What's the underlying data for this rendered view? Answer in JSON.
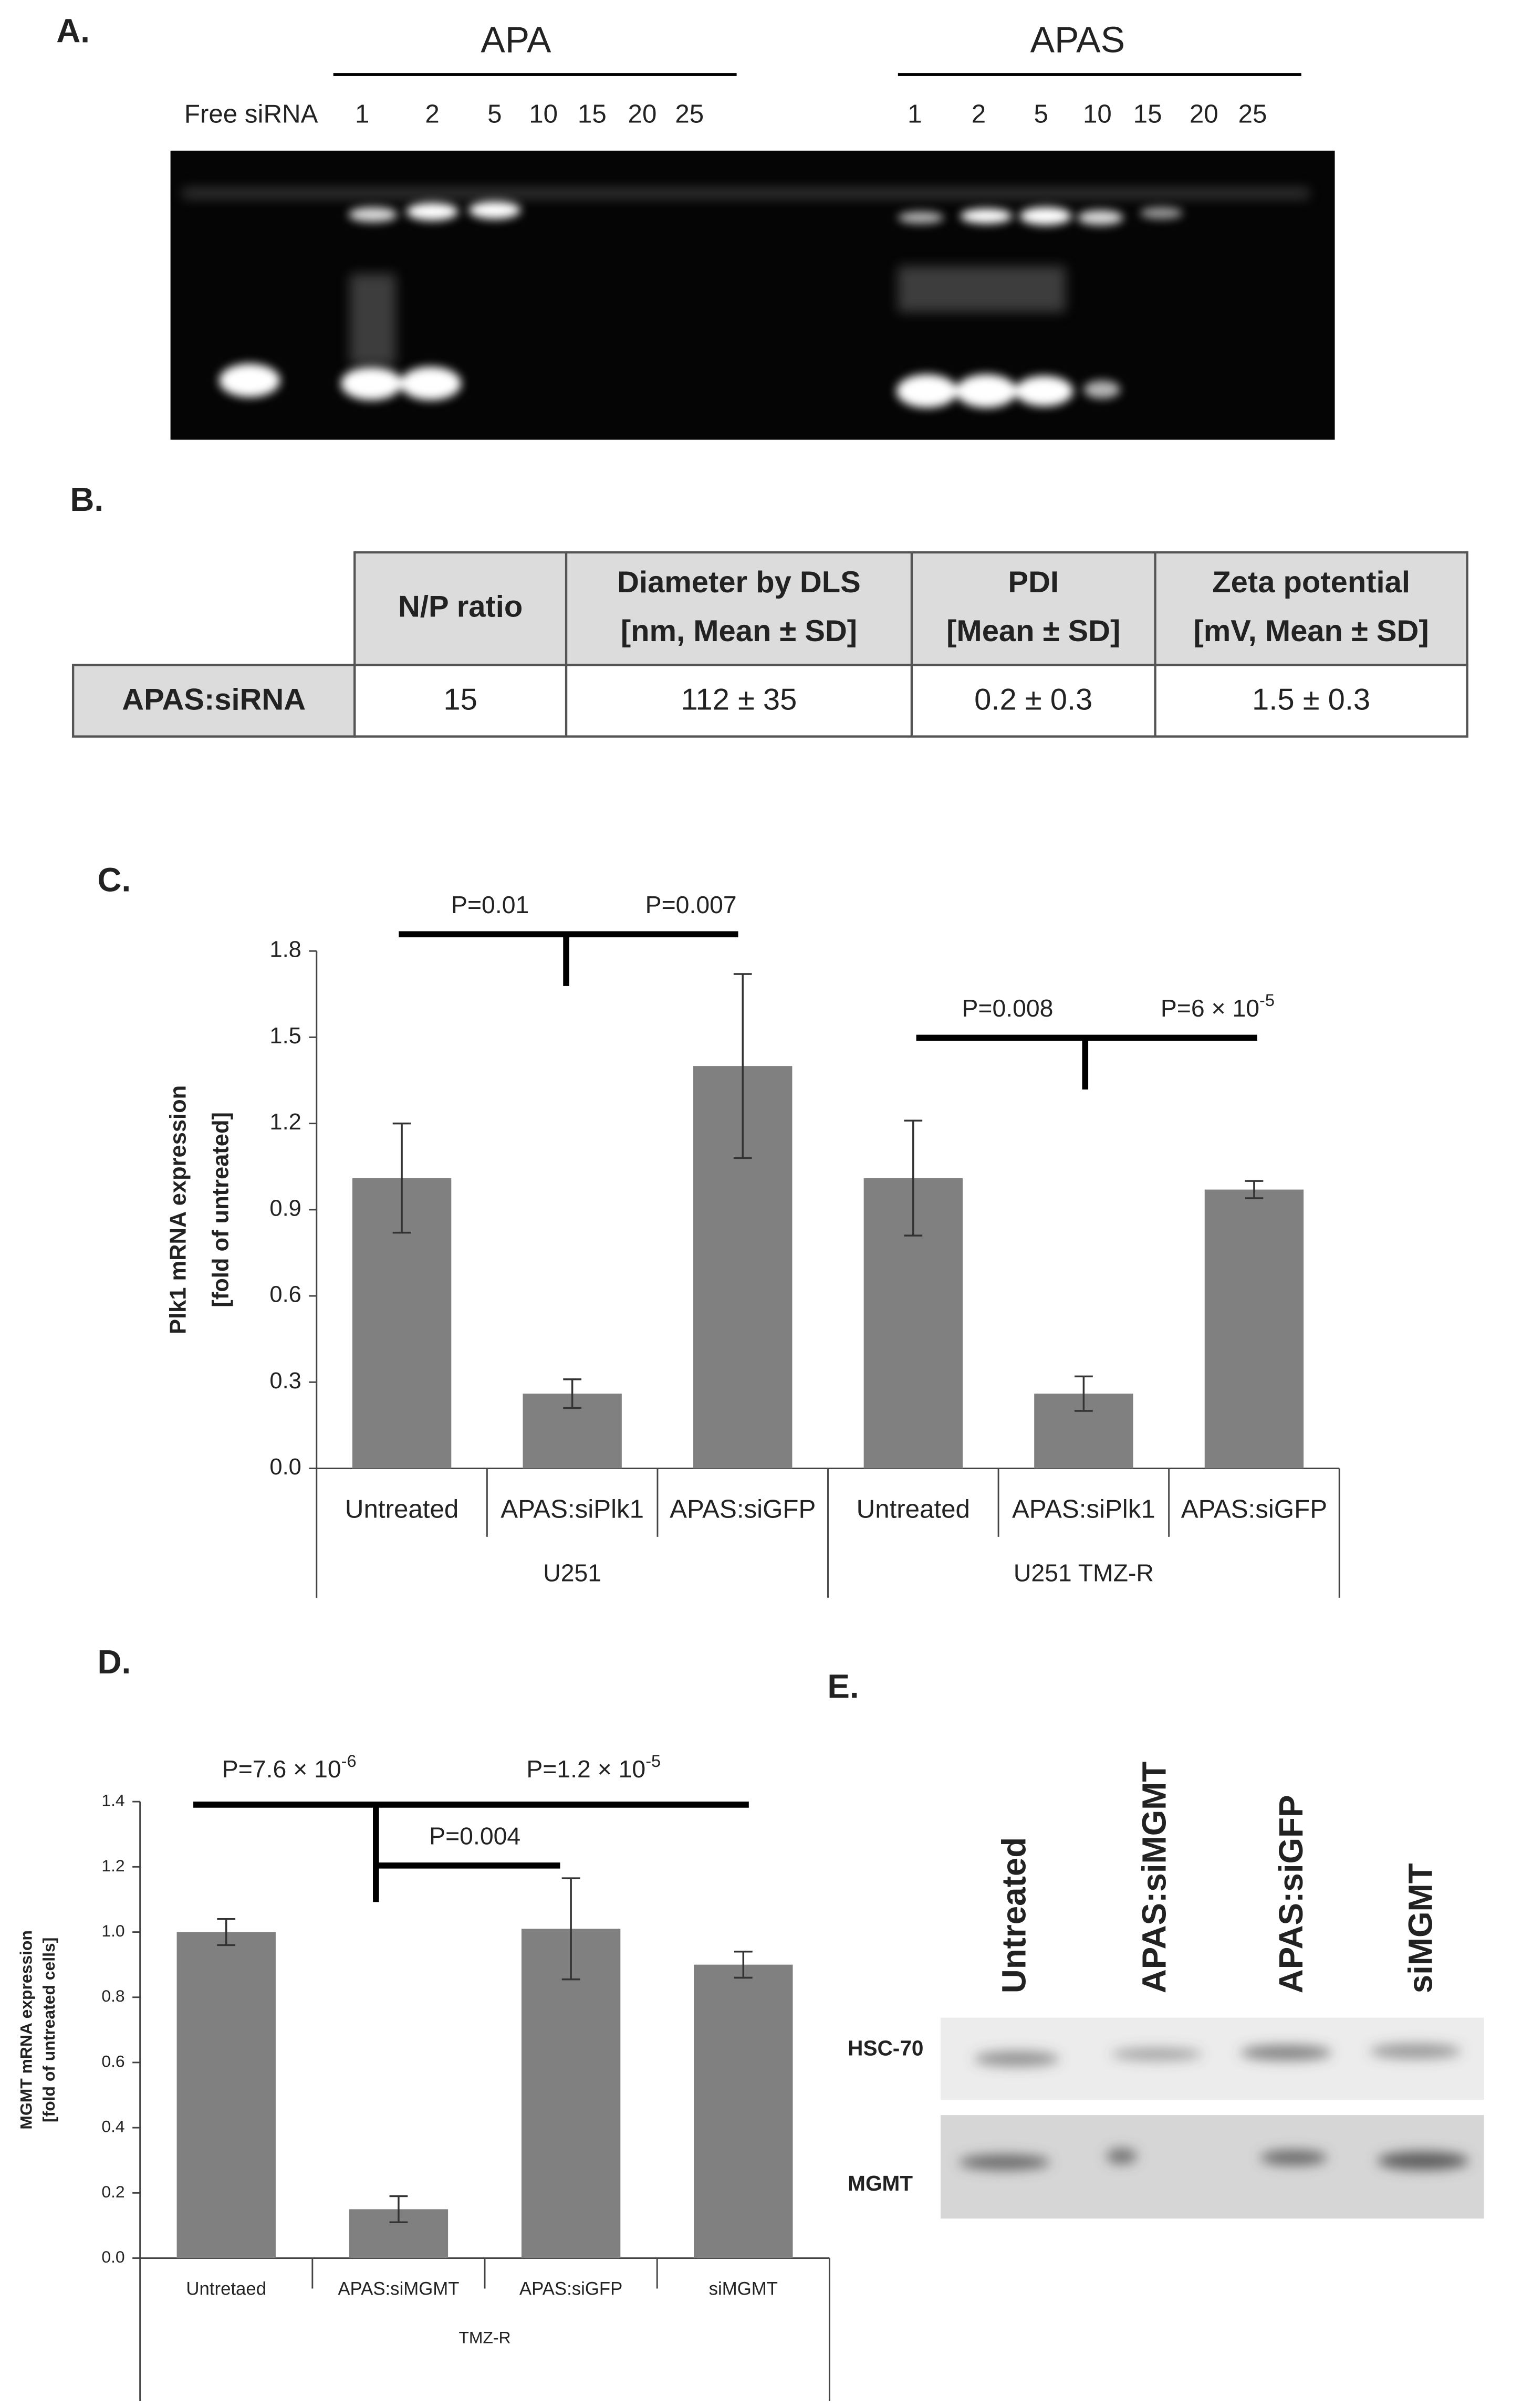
{
  "panel_labels": [
    "A.",
    "B.",
    "C.",
    "D.",
    "E."
  ],
  "gel": {
    "free_lane": "Free siRNA",
    "groups": [
      {
        "name": "APA",
        "lanes": [
          "1",
          "2",
          "5",
          "10",
          "15",
          "20",
          "25"
        ]
      },
      {
        "name": "APAS",
        "lanes": [
          "1",
          "2",
          "5",
          "10",
          "15",
          "20",
          "25"
        ]
      }
    ]
  },
  "table": {
    "header": [
      [
        "N/P ratio"
      ],
      [
        "Diameter by DLS",
        "[nm, Mean ± SD]"
      ],
      [
        "PDI",
        "[Mean ± SD]"
      ],
      [
        "Zeta potential",
        "[mV, Mean ± SD]"
      ]
    ],
    "rows": [
      [
        "APAS:siRNA",
        "15",
        "112 ± 35",
        "0.2 ± 0.3",
        "1.5 ± 0.3"
      ]
    ]
  },
  "chart_data": [
    {
      "type": "bar",
      "ylabel": [
        "Plk1 mRNA expression",
        "[fold of untreated]"
      ],
      "categories": [
        "Untreated",
        "APAS:siPlk1",
        "APAS:siGFP",
        "Untreated",
        "APAS:siPlk1",
        "APAS:siGFP"
      ],
      "group_labels": [
        "U251",
        "U251 TMZ-R"
      ],
      "values": [
        1.01,
        0.26,
        1.4,
        1.01,
        0.26,
        0.97
      ],
      "errors": [
        0.19,
        0.05,
        0.32,
        0.2,
        0.06,
        0.03
      ],
      "color": "#808080",
      "ylim": [
        0,
        1.8
      ],
      "yticks": [
        {
          "value": 0,
          "label": "0.0"
        },
        0.3,
        0.6,
        0.9,
        1.2,
        1.5,
        1.8
      ],
      "annotations": [
        {
          "text": "P=0.01"
        },
        {
          "text": "P=0.007"
        },
        {
          "text": "P=0.008"
        },
        {
          "text": "P=6 × 10",
          "sup": "-5"
        }
      ]
    },
    {
      "type": "bar",
      "ylabel": [
        "MGMT mRNA expression",
        "[fold of untreated cells]"
      ],
      "categories": [
        "Untretaed",
        "APAS:siMGMT",
        "APAS:siGFP",
        "siMGMT"
      ],
      "group_labels": [
        "TMZ-R"
      ],
      "values": [
        1.0,
        0.15,
        1.01,
        0.9
      ],
      "errors": [
        0.04,
        0.04,
        0.155,
        0.04
      ],
      "color": "#808080",
      "ylim": [
        0,
        1.4
      ],
      "yticks": [
        {
          "value": 0,
          "label": "0.0"
        },
        0.2,
        0.4,
        0.6,
        0.8,
        {
          "value": 1,
          "label": "1.0"
        },
        1.2,
        1.4
      ],
      "annotations": [
        {
          "text": "P=7.6 × 10",
          "sup": "-6"
        },
        {
          "text": "P=1.2 × 10",
          "sup": "-5"
        },
        {
          "text": "P=0.004"
        }
      ]
    }
  ],
  "blot": {
    "lanes": [
      "Untreated",
      "APAS:siMGMT",
      "APAS:siGFP",
      "siMGMT"
    ],
    "rows": [
      "HSC-70",
      "MGMT"
    ]
  }
}
